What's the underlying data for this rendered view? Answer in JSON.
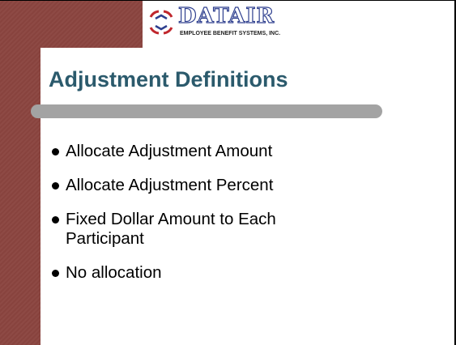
{
  "header": {
    "logo_name": "DATAIR",
    "logo_tagline": "EMPLOYEE BENEFIT SYSTEMS, INC."
  },
  "title": "Adjustment Definitions",
  "bullets": [
    "Allocate Adjustment Amount",
    "Allocate Adjustment Percent",
    "Fixed Dollar Amount to Each Participant",
    "No allocation"
  ]
}
